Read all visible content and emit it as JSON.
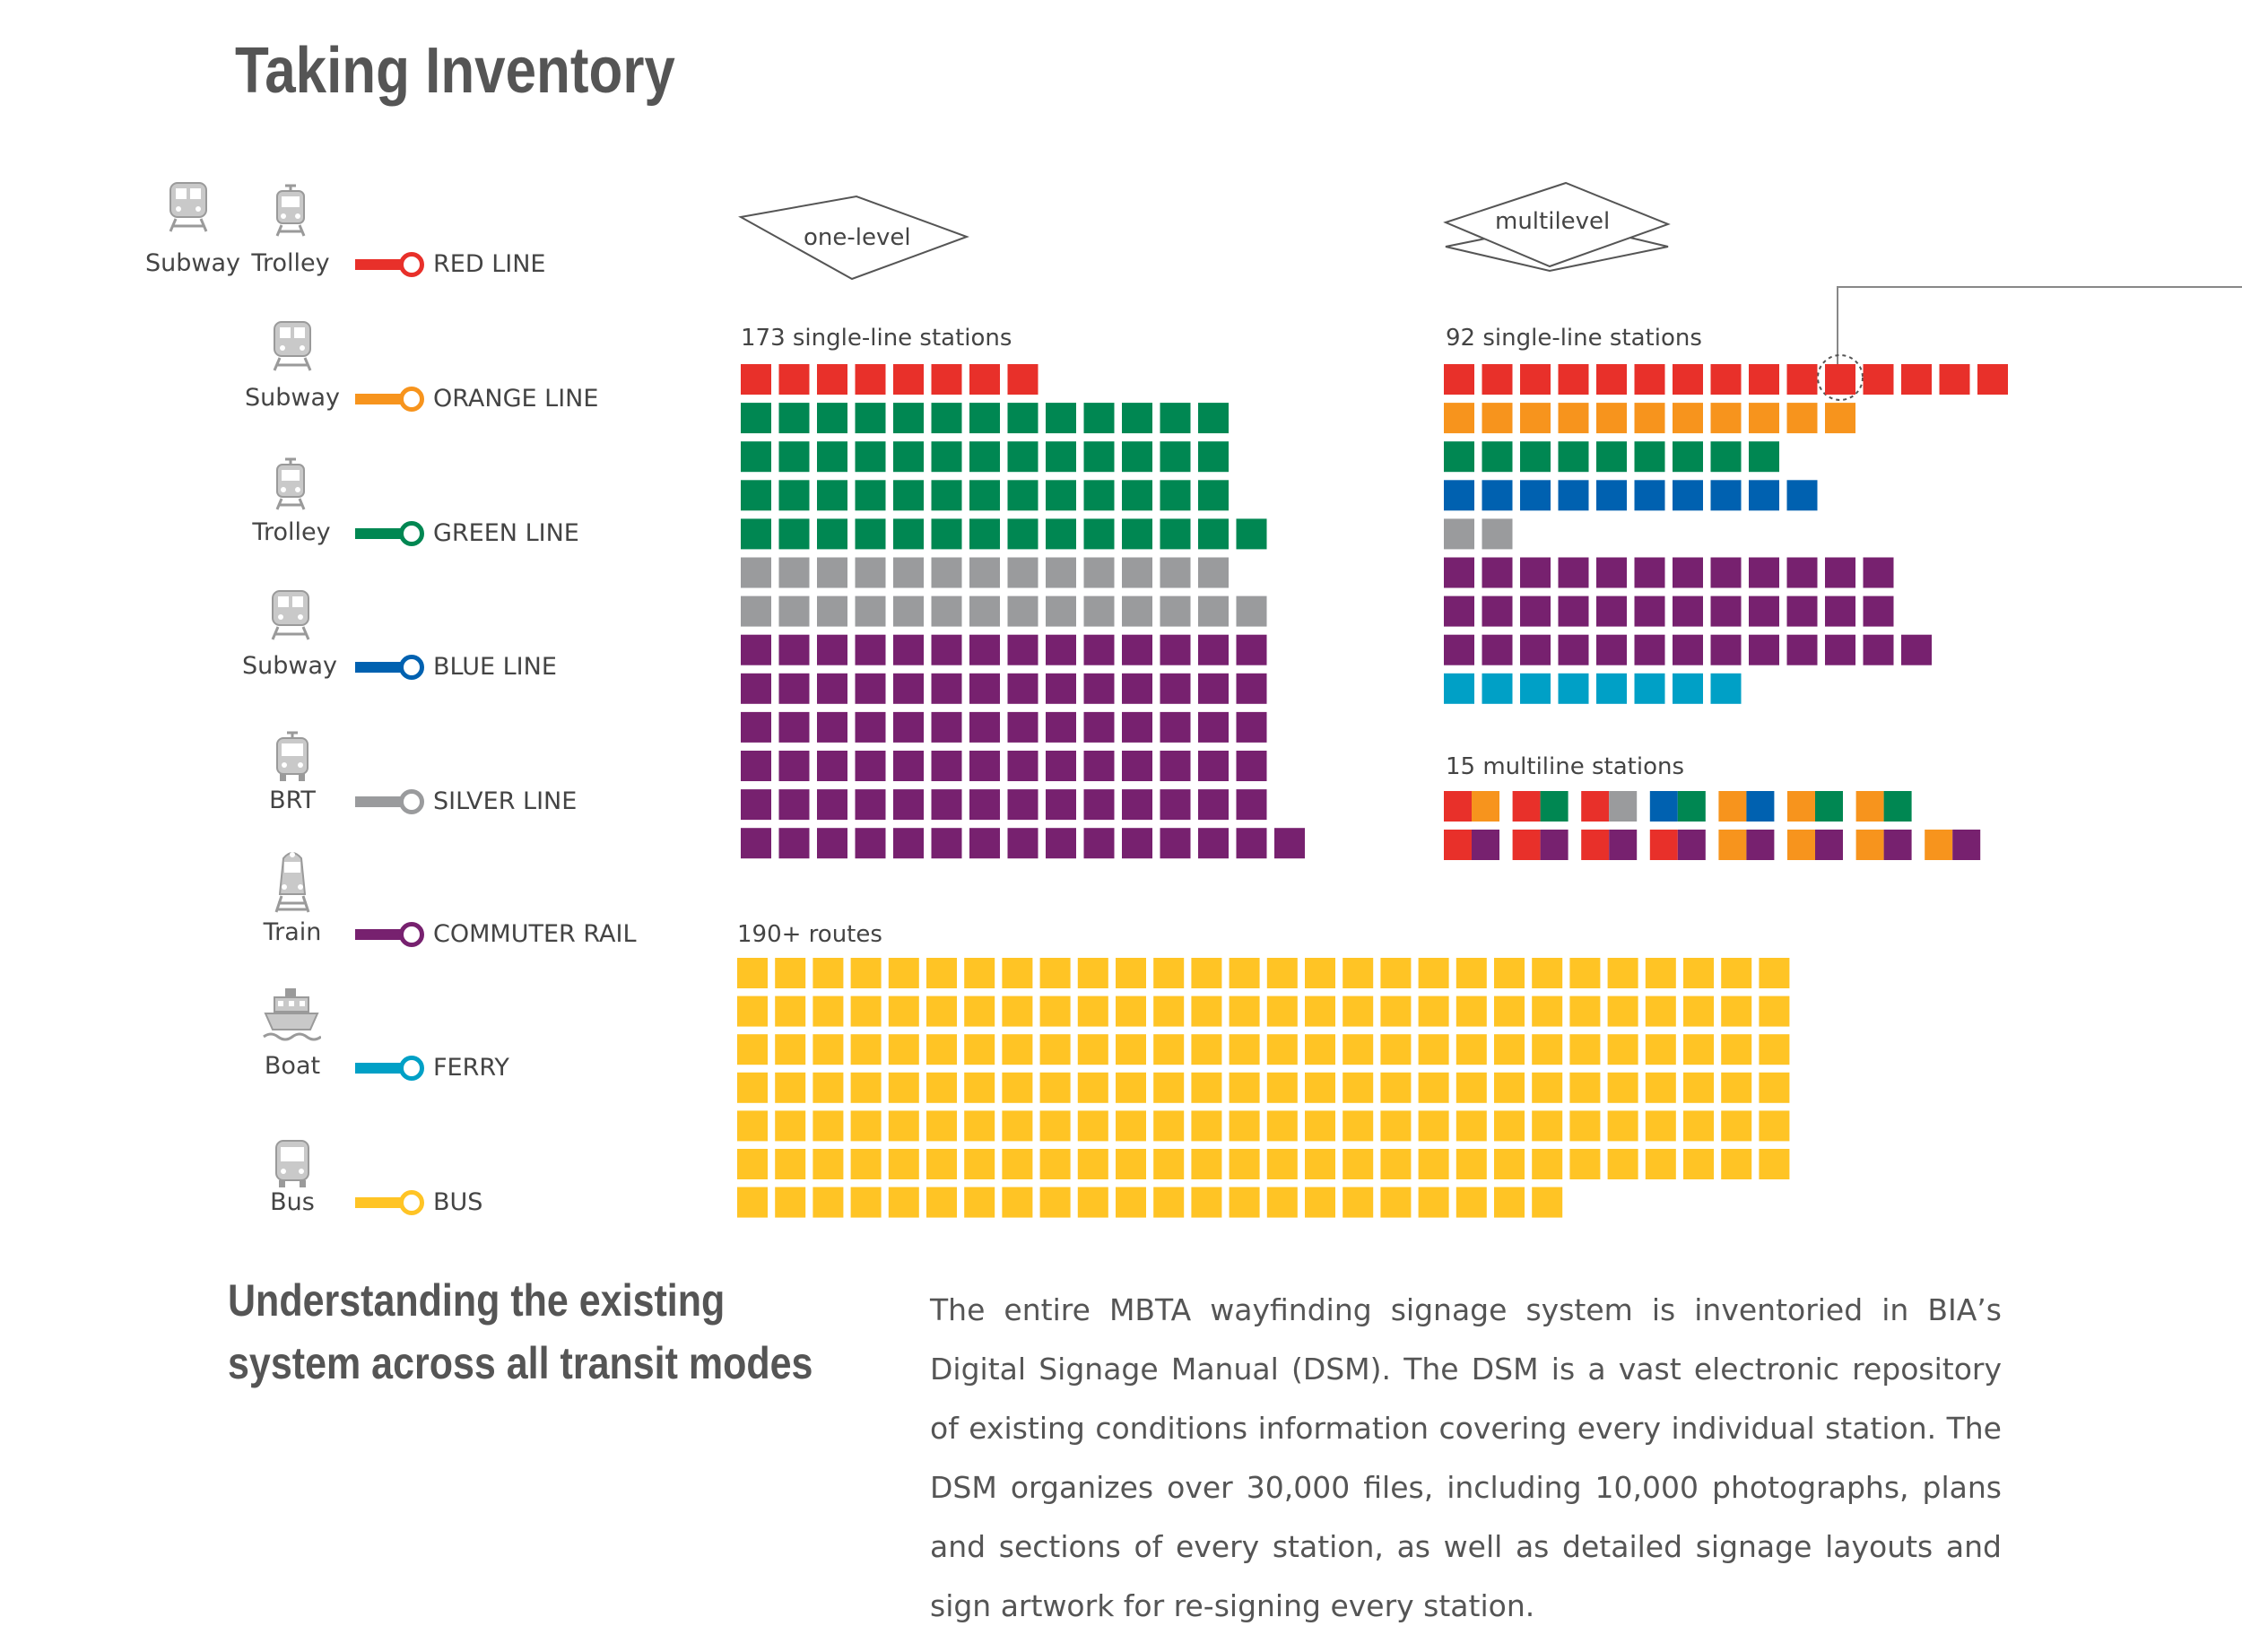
{
  "title": "Taking Inventory",
  "modes": [
    {
      "vehicles": [
        "Subway",
        "Trolley"
      ],
      "icons": [
        "subway-icon",
        "trolley-icon"
      ],
      "line": "RED LINE",
      "color": "#E8302A"
    },
    {
      "vehicles": [
        "Subway"
      ],
      "icons": [
        "subway-icon"
      ],
      "line": "ORANGE LINE",
      "color": "#F7941D"
    },
    {
      "vehicles": [
        "Trolley"
      ],
      "icons": [
        "trolley-icon"
      ],
      "line": "GREEN LINE",
      "color": "#008752"
    },
    {
      "vehicles": [
        "Subway"
      ],
      "icons": [
        "subway-icon"
      ],
      "line": "BLUE LINE",
      "color": "#0061B0"
    },
    {
      "vehicles": [
        "BRT"
      ],
      "icons": [
        "brt-icon"
      ],
      "line": "SILVER LINE",
      "color": "#9A9B9D"
    },
    {
      "vehicles": [
        "Train"
      ],
      "icons": [
        "train-icon"
      ],
      "line": "COMMUTER RAIL",
      "color": "#77216F"
    },
    {
      "vehicles": [
        "Boat"
      ],
      "icons": [
        "boat-icon"
      ],
      "line": "FERRY",
      "color": "#00A0C6"
    },
    {
      "vehicles": [
        "Bus"
      ],
      "icons": [
        "bus-icon"
      ],
      "line": "BUS",
      "color": "#FFC425"
    }
  ],
  "planes": {
    "one_level": "one-level",
    "multilevel": "multilevel"
  },
  "chart_data": [
    {
      "type": "table",
      "label": "173 single-line stations",
      "rows": [
        {
          "line": "RED LINE",
          "count": 8
        },
        {
          "line": "GREEN LINE",
          "count": 13
        },
        {
          "line": "GREEN LINE",
          "count": 13
        },
        {
          "line": "GREEN LINE",
          "count": 13
        },
        {
          "line": "GREEN LINE",
          "count": 14
        },
        {
          "line": "SILVER LINE",
          "count": 13
        },
        {
          "line": "SILVER LINE",
          "count": 14
        },
        {
          "line": "COMMUTER RAIL",
          "count": 14
        },
        {
          "line": "COMMUTER RAIL",
          "count": 14
        },
        {
          "line": "COMMUTER RAIL",
          "count": 14
        },
        {
          "line": "COMMUTER RAIL",
          "count": 14
        },
        {
          "line": "COMMUTER RAIL",
          "count": 14
        },
        {
          "line": "COMMUTER RAIL",
          "count": 15
        }
      ]
    },
    {
      "type": "table",
      "label": "92 single-line stations",
      "rows": [
        {
          "line": "RED LINE",
          "count": 15
        },
        {
          "line": "ORANGE LINE",
          "count": 11
        },
        {
          "line": "GREEN LINE",
          "count": 9
        },
        {
          "line": "BLUE LINE",
          "count": 10
        },
        {
          "line": "SILVER LINE",
          "count": 2
        },
        {
          "line": "COMMUTER RAIL",
          "count": 12
        },
        {
          "line": "COMMUTER RAIL",
          "count": 12
        },
        {
          "line": "COMMUTER RAIL",
          "count": 13
        },
        {
          "line": "FERRY",
          "count": 8
        }
      ]
    },
    {
      "type": "table",
      "label": "15 multiline stations",
      "pairs": [
        [
          "RED LINE",
          "ORANGE LINE"
        ],
        [
          "RED LINE",
          "GREEN LINE"
        ],
        [
          "RED LINE",
          "SILVER LINE"
        ],
        [
          "BLUE LINE",
          "GREEN LINE"
        ],
        [
          "ORANGE LINE",
          "BLUE LINE"
        ],
        [
          "ORANGE LINE",
          "GREEN LINE"
        ],
        [
          "ORANGE LINE",
          "GREEN LINE"
        ],
        [
          "RED LINE",
          "COMMUTER RAIL"
        ],
        [
          "RED LINE",
          "COMMUTER RAIL"
        ],
        [
          "RED LINE",
          "COMMUTER RAIL"
        ],
        [
          "RED LINE",
          "COMMUTER RAIL"
        ],
        [
          "ORANGE LINE",
          "COMMUTER RAIL"
        ],
        [
          "ORANGE LINE",
          "COMMUTER RAIL"
        ],
        [
          "ORANGE LINE",
          "COMMUTER RAIL"
        ],
        [
          "ORANGE LINE",
          "COMMUTER RAIL"
        ]
      ]
    },
    {
      "type": "table",
      "label": "190+ routes",
      "rows": [
        {
          "line": "BUS",
          "count": 28
        },
        {
          "line": "BUS",
          "count": 28
        },
        {
          "line": "BUS",
          "count": 28
        },
        {
          "line": "BUS",
          "count": 28
        },
        {
          "line": "BUS",
          "count": 28
        },
        {
          "line": "BUS",
          "count": 28
        },
        {
          "line": "BUS",
          "count": 22
        }
      ]
    }
  ],
  "subtitle": "Understanding the existing system across all transit modes",
  "body": "The entire MBTA wayfinding signage system is inventoried in BIA’s Digital Signage Manual (DSM). The DSM is a vast electronic repository of existing conditions information covering every individual station. The DSM organizes over 30,000 files, including 10,000 photographs, plans and sections of every station, as well as detailed signage layouts and sign artwork for re-signing every station."
}
